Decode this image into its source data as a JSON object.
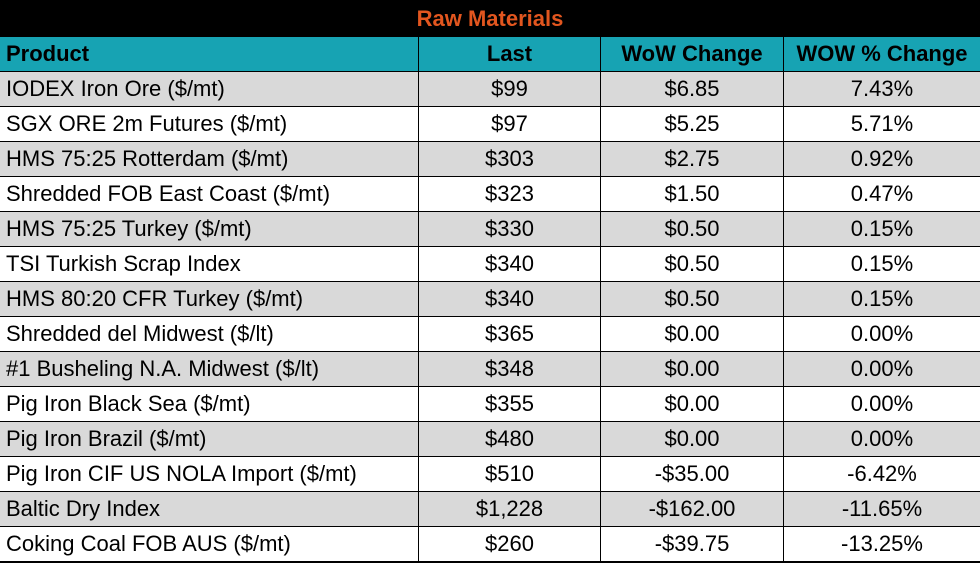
{
  "chart_data": {
    "type": "table",
    "title": "Raw Materials",
    "columns": [
      "Product",
      "Last",
      "WoW Change",
      "WOW % Change"
    ],
    "rows": [
      [
        "IODEX  Iron Ore ($/mt)",
        "$99",
        "$6.85",
        "7.43%"
      ],
      [
        "SGX ORE 2m Futures ($/mt)",
        "$97",
        "$5.25",
        "5.71%"
      ],
      [
        "HMS 75:25 Rotterdam ($/mt)",
        "$303",
        "$2.75",
        "0.92%"
      ],
      [
        "Shredded FOB East Coast ($/mt)",
        "$323",
        "$1.50",
        "0.47%"
      ],
      [
        "HMS 75:25 Turkey ($/mt)",
        "$330",
        "$0.50",
        "0.15%"
      ],
      [
        "TSI Turkish Scrap Index",
        "$340",
        "$0.50",
        "0.15%"
      ],
      [
        "HMS 80:20 CFR Turkey ($/mt)",
        "$340",
        "$0.50",
        "0.15%"
      ],
      [
        "Shredded del  Midwest ($/lt)",
        "$365",
        "$0.00",
        "0.00%"
      ],
      [
        "#1 Busheling N.A. Midwest ($/lt)",
        "$348",
        "$0.00",
        "0.00%"
      ],
      [
        "Pig Iron Black Sea ($/mt)",
        "$355",
        "$0.00",
        "0.00%"
      ],
      [
        "Pig Iron Brazil ($/mt)",
        "$480",
        "$0.00",
        "0.00%"
      ],
      [
        "Pig Iron CIF US NOLA Import ($/mt)",
        "$510",
        "-$35.00",
        "-6.42%"
      ],
      [
        "Baltic Dry Index",
        "$1,228",
        "-$162.00",
        "-11.65%"
      ],
      [
        "Coking Coal FOB AUS ($/mt)",
        "$260",
        "-$39.75",
        "-13.25%"
      ]
    ]
  },
  "colors": {
    "title_text": "#e2561f",
    "title_bg": "#000000",
    "header_bg": "#17a3b3",
    "row_alt": "#d9d9d9",
    "row_plain": "#ffffff"
  }
}
